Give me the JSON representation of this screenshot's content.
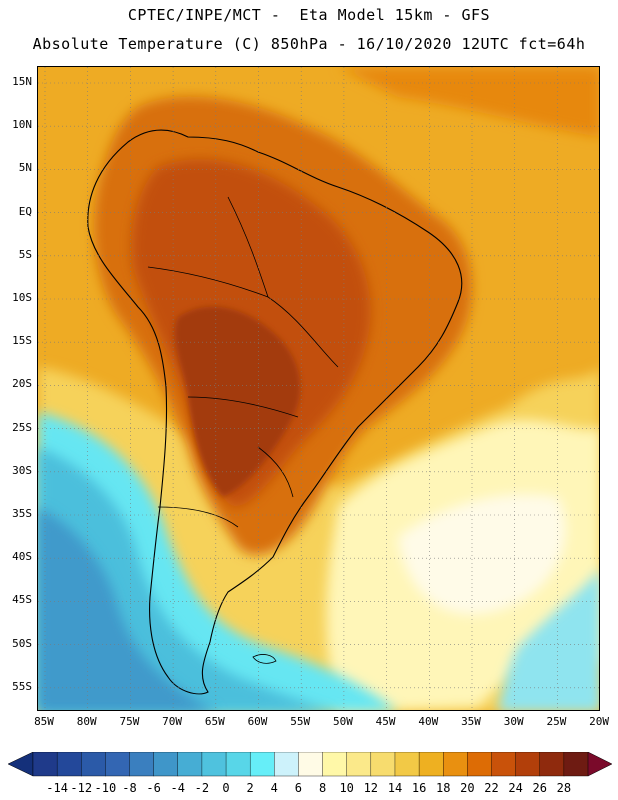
{
  "header": {
    "line1": "CPTEC/INPE/MCT -  Eta Model 15km - GFS",
    "line2": "Absolute Temperature (C) 850hPa - 16/10/2020 12UTC fct=64h"
  },
  "map": {
    "region": "South America",
    "variable": "Absolute Temperature",
    "units": "C",
    "level": "850hPa",
    "lat_ticks": [
      "15N",
      "10N",
      "5N",
      "EQ",
      "5S",
      "10S",
      "15S",
      "20S",
      "25S",
      "30S",
      "35S",
      "40S",
      "45S",
      "50S",
      "55S"
    ],
    "lon_ticks": [
      "85W",
      "80W",
      "75W",
      "70W",
      "65W",
      "60W",
      "55W",
      "50W",
      "45W",
      "40W",
      "35W",
      "30W",
      "25W",
      "20W"
    ]
  },
  "colorbar": {
    "labels": [
      "-14",
      "-12",
      "-10",
      "-8",
      "-6",
      "-4",
      "-2",
      "0",
      "2",
      "4",
      "6",
      "8",
      "10",
      "12",
      "14",
      "16",
      "18",
      "20",
      "22",
      "24",
      "26",
      "28"
    ],
    "colors": [
      "#1f3a8a",
      "#23489a",
      "#2b5aa8",
      "#3366b3",
      "#3a7fbf",
      "#3f96c9",
      "#46add4",
      "#4fc2de",
      "#58d6e8",
      "#66eef8",
      "#cdf2fb",
      "#fffbe6",
      "#fff8a8",
      "#fbe98a",
      "#f7dc6e",
      "#f2c946",
      "#eeb021",
      "#e99010",
      "#dd6c05",
      "#c9520a",
      "#b23f0a",
      "#8f2a0d",
      "#6e1b12"
    ],
    "under_color": "#14307a",
    "over_color": "#7a0a2a"
  },
  "colors": {
    "ocean_warm": "#eea720",
    "ocean_north": "#ea9712",
    "land_hot": "#c2500a",
    "land_hottest": "#a33b0c",
    "cold_south": "#3e9acb",
    "frame": "#000000"
  }
}
